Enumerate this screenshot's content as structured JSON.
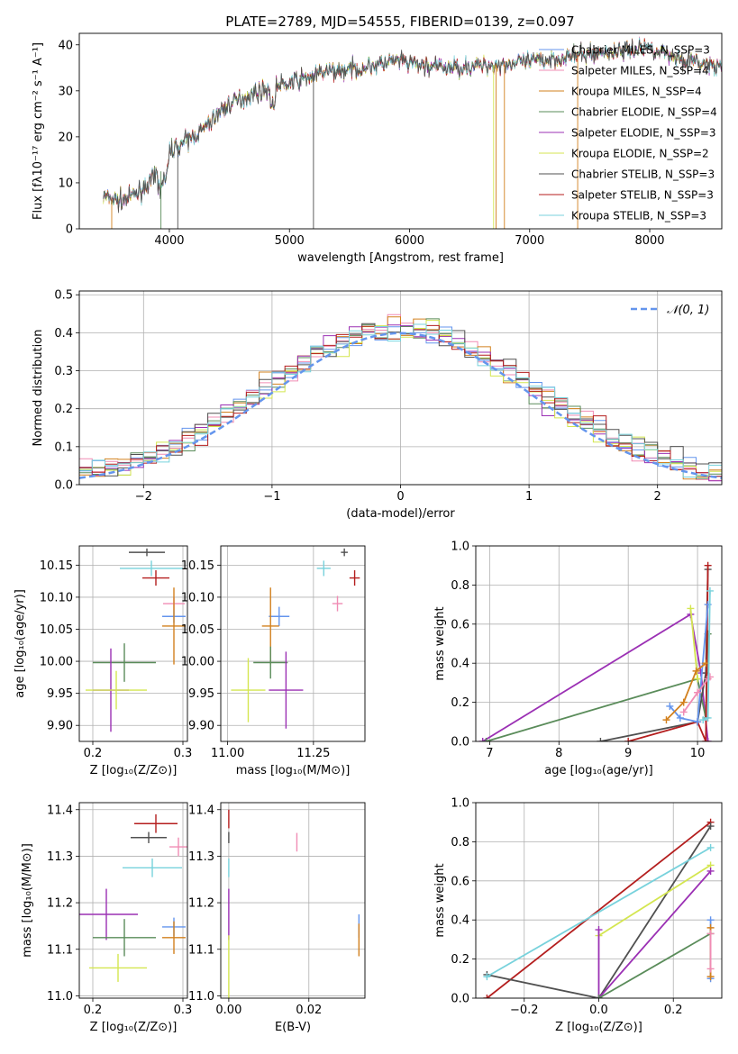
{
  "figure": {
    "title": "PLATE=2789, MJD=54555, FIBERID=0139, z=0.097"
  },
  "chart_data": [
    {
      "id": "spectrum",
      "type": "line",
      "xlabel": "wavelength [Angstrom, rest frame]",
      "ylabel": "Flux [fλ10⁻¹⁷ erg cm⁻² s⁻¹ A⁻¹]",
      "xlim": [
        3250,
        8600
      ],
      "ylim": [
        0,
        42.5
      ],
      "xticks": [
        4000,
        5000,
        6000,
        7000,
        8000
      ],
      "yticks": [
        0,
        10,
        20,
        30,
        40
      ],
      "legend_position": "top-right",
      "continuum": {
        "x": [
          3450,
          3600,
          3750,
          3850,
          3950,
          4000,
          4100,
          4200,
          4300,
          4400,
          4500,
          4700,
          4900,
          5100,
          5300,
          5600,
          5900,
          6100,
          6300,
          6600,
          6900,
          7200,
          7500,
          7700,
          8000,
          8250,
          8600
        ],
        "y": [
          7,
          6,
          8,
          10.5,
          13,
          17,
          18.5,
          20,
          22,
          25,
          27,
          29.5,
          31,
          32.5,
          34,
          35,
          36.5,
          35.5,
          35,
          35.5,
          36,
          37,
          38,
          38.5,
          39.5,
          37,
          35
        ]
      },
      "series": [
        {
          "name": "Chabrier MILES, N_SSP=3",
          "color": "#6495ed"
        },
        {
          "name": "Salpeter MILES, N_SSP=4",
          "color": "#f08cb4"
        },
        {
          "name": "Kroupa MILES, N_SSP=4",
          "color": "#d2801e"
        },
        {
          "name": "Chabrier ELODIE, N_SSP=4",
          "color": "#5a8c5a"
        },
        {
          "name": "Salpeter ELODIE, N_SSP=3",
          "color": "#9b30b4"
        },
        {
          "name": "Kroupa ELODIE, N_SSP=2",
          "color": "#d4e650"
        },
        {
          "name": "Chabrier STELIB, N_SSP=3",
          "color": "#505050"
        },
        {
          "name": "Salpeter STELIB, N_SSP=3",
          "color": "#b41e1e"
        },
        {
          "name": "Kroupa STELIB, N_SSP=3",
          "color": "#78d2dc"
        }
      ]
    },
    {
      "id": "residuals",
      "type": "histogram",
      "xlabel": "(data-model)/error",
      "ylabel": "Normed distribution",
      "xlim": [
        -2.5,
        2.5
      ],
      "ylim": [
        0,
        0.51
      ],
      "xticks": [
        -2,
        -1,
        0,
        1,
        2
      ],
      "yticks": [
        0.0,
        0.1,
        0.2,
        0.3,
        0.4,
        0.5
      ],
      "grid": true,
      "legend_position": "top-right",
      "reference": {
        "name": "𝒩(0, 1)",
        "mean": 0,
        "sigma": 1,
        "color": "#6495ed"
      },
      "bin_width": 0.1
    },
    {
      "id": "age-vs-Z",
      "type": "errorbar",
      "xlabel": "Z [log₁₀(Z/Z⊙)]",
      "ylabel": "age  [log₁₀(age/yr)]",
      "xlim": [
        0.185,
        0.305
      ],
      "ylim": [
        9.875,
        10.18
      ],
      "xticks": [
        0.2,
        0.3
      ],
      "yticks": [
        9.9,
        9.95,
        10.0,
        10.05,
        10.1,
        10.15
      ],
      "grid": true,
      "points": [
        {
          "x": 0.265,
          "xerr": 0.035,
          "y": 10.145,
          "yerr": 0.012,
          "color": "#78d2dc"
        },
        {
          "x": 0.26,
          "xerr": 0.02,
          "y": 10.17,
          "yerr": 0.006,
          "color": "#505050"
        },
        {
          "x": 0.27,
          "xerr": 0.015,
          "y": 10.13,
          "yerr": 0.012,
          "color": "#b41e1e"
        },
        {
          "x": 0.29,
          "xerr": 0.012,
          "y": 10.09,
          "yerr": 0.01,
          "color": "#f08cb4"
        },
        {
          "x": 0.29,
          "xerr": 0.013,
          "y": 10.07,
          "yerr": 0.01,
          "color": "#6495ed"
        },
        {
          "x": 0.29,
          "xerr": 0.013,
          "y": 10.055,
          "yerr": 0.06,
          "color": "#d2801e"
        },
        {
          "x": 0.235,
          "xerr": 0.035,
          "y": 9.998,
          "yerr": 0.03,
          "color": "#5a8c5a"
        },
        {
          "x": 0.22,
          "xerr": 0.02,
          "y": 9.955,
          "yerr": 0.065,
          "color": "#9b30b4"
        },
        {
          "x": 0.226,
          "xerr": 0.034,
          "y": 9.955,
          "yerr": 0.03,
          "color": "#d4e650"
        }
      ]
    },
    {
      "id": "age-vs-mass",
      "type": "errorbar",
      "xlabel": "mass [log₁₀(M/M⊙)]",
      "ylabel": "",
      "xlim": [
        10.98,
        11.4
      ],
      "ylim": [
        9.875,
        10.18
      ],
      "xticks": [
        11.0,
        11.25
      ],
      "yticks": [
        9.9,
        9.95,
        10.0,
        10.05,
        10.1,
        10.15
      ],
      "grid": true,
      "points": [
        {
          "x": 11.28,
          "xerr": 0.02,
          "y": 10.145,
          "yerr": 0.012,
          "color": "#78d2dc"
        },
        {
          "x": 11.34,
          "xerr": 0.01,
          "y": 10.17,
          "yerr": 0.006,
          "color": "#505050"
        },
        {
          "x": 11.37,
          "xerr": 0.015,
          "y": 10.13,
          "yerr": 0.012,
          "color": "#b41e1e"
        },
        {
          "x": 11.32,
          "xerr": 0.015,
          "y": 10.09,
          "yerr": 0.012,
          "color": "#f08cb4"
        },
        {
          "x": 11.15,
          "xerr": 0.03,
          "y": 10.07,
          "yerr": 0.015,
          "color": "#6495ed"
        },
        {
          "x": 11.125,
          "xerr": 0.025,
          "y": 10.055,
          "yerr": 0.06,
          "color": "#d2801e"
        },
        {
          "x": 11.125,
          "xerr": 0.05,
          "y": 9.998,
          "yerr": 0.025,
          "color": "#5a8c5a"
        },
        {
          "x": 11.17,
          "xerr": 0.05,
          "y": 9.955,
          "yerr": 0.06,
          "color": "#9b30b4"
        },
        {
          "x": 11.06,
          "xerr": 0.05,
          "y": 9.955,
          "yerr": 0.05,
          "color": "#d4e650"
        }
      ]
    },
    {
      "id": "mass-weight-vs-age",
      "type": "line",
      "xlabel": "age  [log₁₀(age/yr)]",
      "ylabel": "mass weight",
      "xlim": [
        6.8,
        10.35
      ],
      "ylim": [
        0,
        1.0
      ],
      "xticks": [
        7,
        8,
        9,
        10
      ],
      "yticks": [
        0.0,
        0.2,
        0.4,
        0.6,
        0.8,
        1.0
      ],
      "grid": true,
      "series": [
        {
          "color": "#9b30b4",
          "x": [
            6.9,
            9.9,
            10.05,
            10.15
          ],
          "y": [
            0.0,
            0.65,
            0.35,
            0.0
          ]
        },
        {
          "color": "#5a8c5a",
          "x": [
            6.95,
            10.0,
            10.12,
            10.15
          ],
          "y": [
            0.0,
            0.32,
            0.12,
            0.55
          ]
        },
        {
          "color": "#d4e650",
          "x": [
            9.9,
            10.0
          ],
          "y": [
            0.68,
            0.32
          ]
        },
        {
          "color": "#505050",
          "x": [
            8.6,
            10.0,
            10.12,
            10.15
          ],
          "y": [
            0.0,
            0.1,
            0.35,
            0.88
          ]
        },
        {
          "color": "#b41e1e",
          "x": [
            9.0,
            10.0,
            10.12,
            10.15
          ],
          "y": [
            0.0,
            0.1,
            0.0,
            0.9
          ]
        },
        {
          "color": "#6495ed",
          "x": [
            9.6,
            9.75,
            10.0,
            10.15
          ],
          "y": [
            0.18,
            0.12,
            0.1,
            0.7
          ]
        },
        {
          "color": "#d2801e",
          "x": [
            9.55,
            9.8,
            9.98,
            10.12
          ],
          "y": [
            0.11,
            0.2,
            0.36,
            0.4
          ]
        },
        {
          "color": "#f08cb4",
          "x": [
            9.8,
            10.0,
            10.15,
            10.18
          ],
          "y": [
            0.15,
            0.25,
            0.32,
            0.33
          ]
        },
        {
          "color": "#78d2dc",
          "x": [
            10.08,
            10.15,
            10.18
          ],
          "y": [
            0.11,
            0.12,
            0.77
          ]
        }
      ]
    },
    {
      "id": "mass-vs-Z",
      "type": "errorbar",
      "xlabel": "Z [log₁₀(Z/Z⊙)]",
      "ylabel": "mass [log₁₀(M/M⊙)]",
      "xlim": [
        0.185,
        0.305
      ],
      "ylim": [
        10.995,
        11.415
      ],
      "xticks": [
        0.2,
        0.3
      ],
      "yticks": [
        11.0,
        11.1,
        11.2,
        11.3,
        11.4
      ],
      "grid": true,
      "points": [
        {
          "x": 0.27,
          "xerr": 0.024,
          "y": 11.37,
          "yerr": 0.02,
          "color": "#b41e1e"
        },
        {
          "x": 0.262,
          "xerr": 0.02,
          "y": 11.34,
          "yerr": 0.012,
          "color": "#505050"
        },
        {
          "x": 0.295,
          "xerr": 0.01,
          "y": 11.32,
          "yerr": 0.02,
          "color": "#f08cb4"
        },
        {
          "x": 0.266,
          "xerr": 0.033,
          "y": 11.275,
          "yerr": 0.02,
          "color": "#78d2dc"
        },
        {
          "x": 0.215,
          "xerr": 0.035,
          "y": 11.175,
          "yerr": 0.055,
          "color": "#9b30b4"
        },
        {
          "x": 0.29,
          "xerr": 0.013,
          "y": 11.148,
          "yerr": 0.02,
          "color": "#6495ed"
        },
        {
          "x": 0.29,
          "xerr": 0.013,
          "y": 11.125,
          "yerr": 0.035,
          "color": "#d2801e"
        },
        {
          "x": 0.235,
          "xerr": 0.035,
          "y": 11.125,
          "yerr": 0.04,
          "color": "#5a8c5a"
        },
        {
          "x": 0.228,
          "xerr": 0.032,
          "y": 11.06,
          "yerr": 0.03,
          "color": "#d4e650"
        }
      ]
    },
    {
      "id": "mass-vs-EBV",
      "type": "errorbar",
      "xlabel": "E(B-V)",
      "ylabel": "",
      "xlim": [
        -0.002,
        0.034
      ],
      "ylim": [
        10.995,
        11.415
      ],
      "xticks": [
        0.0,
        0.02
      ],
      "yticks": [
        11.0,
        11.1,
        11.2,
        11.3,
        11.4
      ],
      "grid": true,
      "points": [
        {
          "x": 0.0,
          "xerr": 0,
          "y": 11.38,
          "yerr": 0.02,
          "color": "#b41e1e"
        },
        {
          "x": 0.0,
          "xerr": 0,
          "y": 11.34,
          "yerr": 0.012,
          "color": "#505050"
        },
        {
          "x": 0.0,
          "xerr": 0,
          "y": 11.275,
          "yerr": 0.02,
          "color": "#78d2dc"
        },
        {
          "x": 0.0,
          "xerr": 0,
          "y": 11.175,
          "yerr": 0.055,
          "color": "#9b30b4"
        },
        {
          "x": 0.0,
          "xerr": 0,
          "y": 11.06,
          "yerr": 0.07,
          "color": "#d4e650"
        },
        {
          "x": 0.017,
          "xerr": 0,
          "y": 11.33,
          "yerr": 0.02,
          "color": "#f08cb4"
        },
        {
          "x": 0.0325,
          "xerr": 0,
          "y": 11.15,
          "yerr": 0.025,
          "color": "#6495ed"
        },
        {
          "x": 0.0325,
          "xerr": 0,
          "y": 11.12,
          "yerr": 0.035,
          "color": "#d2801e"
        }
      ]
    },
    {
      "id": "mass-weight-vs-Z",
      "type": "line",
      "xlabel": "Z [log₁₀(Z/Z⊙)]",
      "ylabel": "mass weight",
      "xlim": [
        -0.33,
        0.33
      ],
      "ylim": [
        0,
        1.0
      ],
      "xticks": [
        -0.2,
        0.0,
        0.2
      ],
      "yticks": [
        0.0,
        0.2,
        0.4,
        0.6,
        0.8,
        1.0
      ],
      "grid": true,
      "series": [
        {
          "color": "#b41e1e",
          "x": [
            -0.3,
            0.3
          ],
          "y": [
            0.0,
            0.9
          ]
        },
        {
          "color": "#505050",
          "x": [
            -0.3,
            0.0,
            0.3
          ],
          "y": [
            0.12,
            0.0,
            0.88
          ]
        },
        {
          "color": "#78d2dc",
          "x": [
            -0.3,
            0.3
          ],
          "y": [
            0.11,
            0.77
          ]
        },
        {
          "color": "#d4e650",
          "x": [
            0.0,
            0.3
          ],
          "y": [
            0.32,
            0.68
          ]
        },
        {
          "color": "#9b30b4",
          "x": [
            0.0,
            0.0,
            0.3
          ],
          "y": [
            0.35,
            0.0,
            0.65
          ]
        },
        {
          "color": "#5a8c5a",
          "x": [
            0.0,
            0.3
          ],
          "y": [
            0.0,
            0.33
          ]
        },
        {
          "color": "#6495ed",
          "x": [
            0.3,
            0.3
          ],
          "y": [
            0.1,
            0.4
          ]
        },
        {
          "color": "#d2801e",
          "x": [
            0.3,
            0.3
          ],
          "y": [
            0.11,
            0.36
          ]
        },
        {
          "color": "#f08cb4",
          "x": [
            0.3,
            0.3
          ],
          "y": [
            0.15,
            0.33
          ]
        }
      ]
    }
  ]
}
